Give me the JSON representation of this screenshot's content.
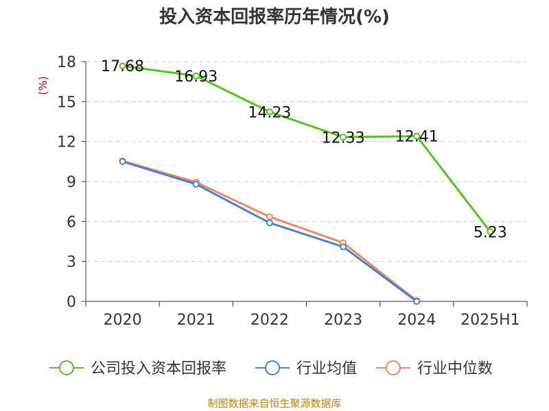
{
  "chart_data": {
    "type": "line",
    "title": "投入资本回报率历年情况(%)",
    "ylabel": "(%)",
    "categories": [
      "2020",
      "2021",
      "2022",
      "2023",
      "2024",
      "2025H1"
    ],
    "ylim": [
      0,
      18
    ],
    "yticks": [
      0,
      3,
      6,
      9,
      12,
      15,
      18
    ],
    "grid": true,
    "legend_position": "bottom",
    "series": [
      {
        "name": "公司投入资本回报率",
        "color": "#52c41a",
        "show_labels": true,
        "values": [
          17.68,
          16.93,
          14.23,
          12.33,
          12.41,
          5.23
        ],
        "labels": [
          "17.68",
          "16.93",
          "14.23",
          "12.33",
          "12.41",
          "5.23"
        ]
      },
      {
        "name": "行业均值",
        "color": "#4a7fd8",
        "show_labels": false,
        "values": [
          10.5,
          8.8,
          5.9,
          4.1,
          0.0,
          null
        ]
      },
      {
        "name": "行业中位数",
        "color": "#f08a5d",
        "show_labels": false,
        "values": [
          10.55,
          8.95,
          6.35,
          4.4,
          0.05,
          null
        ]
      }
    ]
  },
  "source": "制图数据来自恒生聚源数据库"
}
